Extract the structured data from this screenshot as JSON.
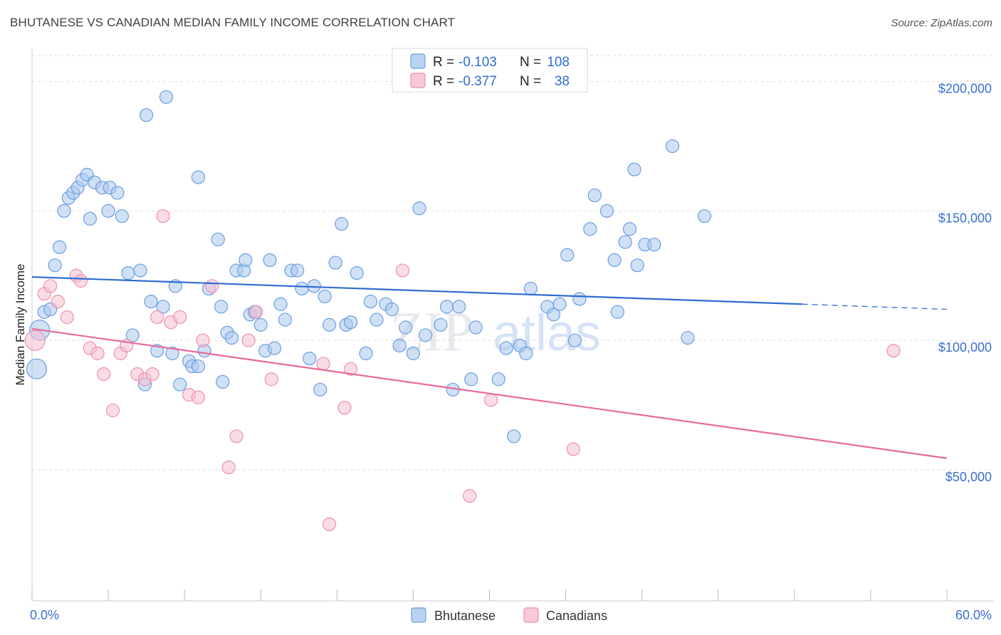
{
  "title": "BHUTANESE VS CANADIAN MEDIAN FAMILY INCOME CORRELATION CHART",
  "source": "Source: ZipAtlas.com",
  "watermark": {
    "zip": "ZIP",
    "atlas": "atlas"
  },
  "legend": {
    "rows": [
      {
        "r_label": "R =",
        "r_value": "-0.103",
        "n_label": "N =",
        "n_value": "108"
      },
      {
        "r_label": "R =",
        "r_value": "-0.377",
        "n_label": "N =",
        "n_value": "38"
      }
    ]
  },
  "bottom_legend": [
    "Bhutanese",
    "Canadians"
  ],
  "colors": {
    "blue_fill": "#a9c8ef",
    "blue_stroke": "#6a9ee0",
    "blue_line": "#2f6bd3",
    "pink_fill": "#f6bfd0",
    "pink_stroke": "#ee8fb0",
    "pink_line": "#e8699a",
    "axis_text": "#3b6fd1",
    "grid": "#dddddd"
  },
  "chart_data": {
    "type": "scatter",
    "title": "BHUTANESE VS CANADIAN MEDIAN FAMILY INCOME CORRELATION CHART",
    "xlabel": "",
    "ylabel": "Median Family Income",
    "xlim": [
      0,
      60
    ],
    "ylim": [
      0,
      210000
    ],
    "x_tick_labels": [
      "0.0%",
      "60.0%"
    ],
    "y_ticks": [
      50000,
      100000,
      150000,
      200000
    ],
    "y_tick_labels": [
      "$50,000",
      "$100,000",
      "$150,000",
      "$200,000"
    ],
    "grid": true,
    "legend_position": "top-center",
    "series": [
      {
        "name": "Bhutanese",
        "r": -0.103,
        "n": 108,
        "trend": {
          "x0": 0,
          "y0": 124500,
          "x1": 50.5,
          "y1": 114000,
          "dashed_to_x": 60,
          "dashed_to_y": 112000
        },
        "points": [
          [
            0.3,
            89000
          ],
          [
            0.5,
            104000
          ],
          [
            0.8,
            111000
          ],
          [
            1.2,
            112000
          ],
          [
            1.5,
            129000
          ],
          [
            1.8,
            136000
          ],
          [
            2.1,
            150000
          ],
          [
            2.4,
            155000
          ],
          [
            2.7,
            157000
          ],
          [
            3.0,
            159000
          ],
          [
            3.3,
            162000
          ],
          [
            3.6,
            164000
          ],
          [
            4.1,
            161000
          ],
          [
            4.6,
            159000
          ],
          [
            5.1,
            159000
          ],
          [
            5.6,
            157000
          ],
          [
            3.8,
            147000
          ],
          [
            5.0,
            150000
          ],
          [
            5.9,
            148000
          ],
          [
            6.3,
            126000
          ],
          [
            6.6,
            102000
          ],
          [
            7.1,
            127000
          ],
          [
            7.4,
            83000
          ],
          [
            7.8,
            115000
          ],
          [
            8.2,
            96000
          ],
          [
            8.6,
            113000
          ],
          [
            9.2,
            95000
          ],
          [
            9.4,
            121000
          ],
          [
            9.7,
            83000
          ],
          [
            10.3,
            92000
          ],
          [
            10.5,
            90000
          ],
          [
            10.9,
            90000
          ],
          [
            11.3,
            96000
          ],
          [
            11.6,
            120000
          ],
          [
            12.2,
            139000
          ],
          [
            12.5,
            84000
          ],
          [
            12.8,
            103000
          ],
          [
            13.1,
            101000
          ],
          [
            13.4,
            127000
          ],
          [
            13.9,
            127000
          ],
          [
            14.0,
            131000
          ],
          [
            14.3,
            110000
          ],
          [
            14.6,
            111000
          ],
          [
            15.0,
            106000
          ],
          [
            15.3,
            96000
          ],
          [
            15.6,
            131000
          ],
          [
            15.9,
            97000
          ],
          [
            16.3,
            114000
          ],
          [
            16.6,
            108000
          ],
          [
            17.0,
            127000
          ],
          [
            17.4,
            127000
          ],
          [
            17.7,
            120000
          ],
          [
            18.2,
            93000
          ],
          [
            18.5,
            121000
          ],
          [
            18.9,
            81000
          ],
          [
            19.2,
            117000
          ],
          [
            19.5,
            106000
          ],
          [
            19.9,
            130000
          ],
          [
            20.3,
            145000
          ],
          [
            20.6,
            106000
          ],
          [
            20.9,
            107000
          ],
          [
            21.3,
            126000
          ],
          [
            21.9,
            95000
          ],
          [
            22.2,
            115000
          ],
          [
            22.6,
            108000
          ],
          [
            23.2,
            114000
          ],
          [
            23.6,
            112000
          ],
          [
            24.1,
            98000
          ],
          [
            24.5,
            105000
          ],
          [
            25.0,
            95000
          ],
          [
            25.4,
            151000
          ],
          [
            25.8,
            102000
          ],
          [
            26.8,
            106000
          ],
          [
            27.2,
            113000
          ],
          [
            27.6,
            81000
          ],
          [
            28.8,
            85000
          ],
          [
            29.1,
            105000
          ],
          [
            30.6,
            85000
          ],
          [
            31.1,
            97000
          ],
          [
            31.6,
            63000
          ],
          [
            32.0,
            98000
          ],
          [
            32.4,
            95000
          ],
          [
            32.7,
            120000
          ],
          [
            33.8,
            113000
          ],
          [
            34.2,
            110000
          ],
          [
            34.6,
            114000
          ],
          [
            35.1,
            133000
          ],
          [
            35.6,
            100000
          ],
          [
            35.9,
            116000
          ],
          [
            36.6,
            143000
          ],
          [
            36.9,
            156000
          ],
          [
            37.7,
            150000
          ],
          [
            38.2,
            131000
          ],
          [
            38.4,
            111000
          ],
          [
            38.9,
            138000
          ],
          [
            39.2,
            143000
          ],
          [
            39.5,
            166000
          ],
          [
            39.7,
            129000
          ],
          [
            40.2,
            137000
          ],
          [
            40.8,
            137000
          ],
          [
            42.0,
            175000
          ],
          [
            43.0,
            101000
          ],
          [
            44.1,
            148000
          ],
          [
            7.5,
            187000
          ],
          [
            8.8,
            194000
          ],
          [
            10.9,
            163000
          ],
          [
            12.4,
            113000
          ],
          [
            28.0,
            113000
          ]
        ]
      },
      {
        "name": "Canadians",
        "r": -0.377,
        "n": 38,
        "trend": {
          "x0": 0,
          "y0": 104500,
          "x1": 60,
          "y1": 54500
        },
        "points": [
          [
            0.2,
            100000
          ],
          [
            0.8,
            118000
          ],
          [
            1.2,
            121000
          ],
          [
            1.7,
            115000
          ],
          [
            2.3,
            109000
          ],
          [
            2.9,
            125000
          ],
          [
            3.2,
            123000
          ],
          [
            3.8,
            97000
          ],
          [
            4.3,
            95000
          ],
          [
            4.7,
            87000
          ],
          [
            5.3,
            73000
          ],
          [
            5.8,
            95000
          ],
          [
            6.2,
            98000
          ],
          [
            6.9,
            87000
          ],
          [
            7.4,
            85000
          ],
          [
            7.9,
            87000
          ],
          [
            8.2,
            109000
          ],
          [
            8.6,
            148000
          ],
          [
            9.1,
            107000
          ],
          [
            9.7,
            109000
          ],
          [
            10.3,
            79000
          ],
          [
            10.9,
            78000
          ],
          [
            11.2,
            100000
          ],
          [
            11.8,
            121000
          ],
          [
            12.9,
            51000
          ],
          [
            13.4,
            63000
          ],
          [
            14.2,
            100000
          ],
          [
            14.7,
            111000
          ],
          [
            15.7,
            85000
          ],
          [
            19.1,
            91000
          ],
          [
            19.5,
            29000
          ],
          [
            20.5,
            74000
          ],
          [
            20.9,
            89000
          ],
          [
            24.3,
            127000
          ],
          [
            28.7,
            40000
          ],
          [
            30.1,
            77000
          ],
          [
            35.5,
            58000
          ],
          [
            56.5,
            96000
          ]
        ]
      }
    ]
  }
}
